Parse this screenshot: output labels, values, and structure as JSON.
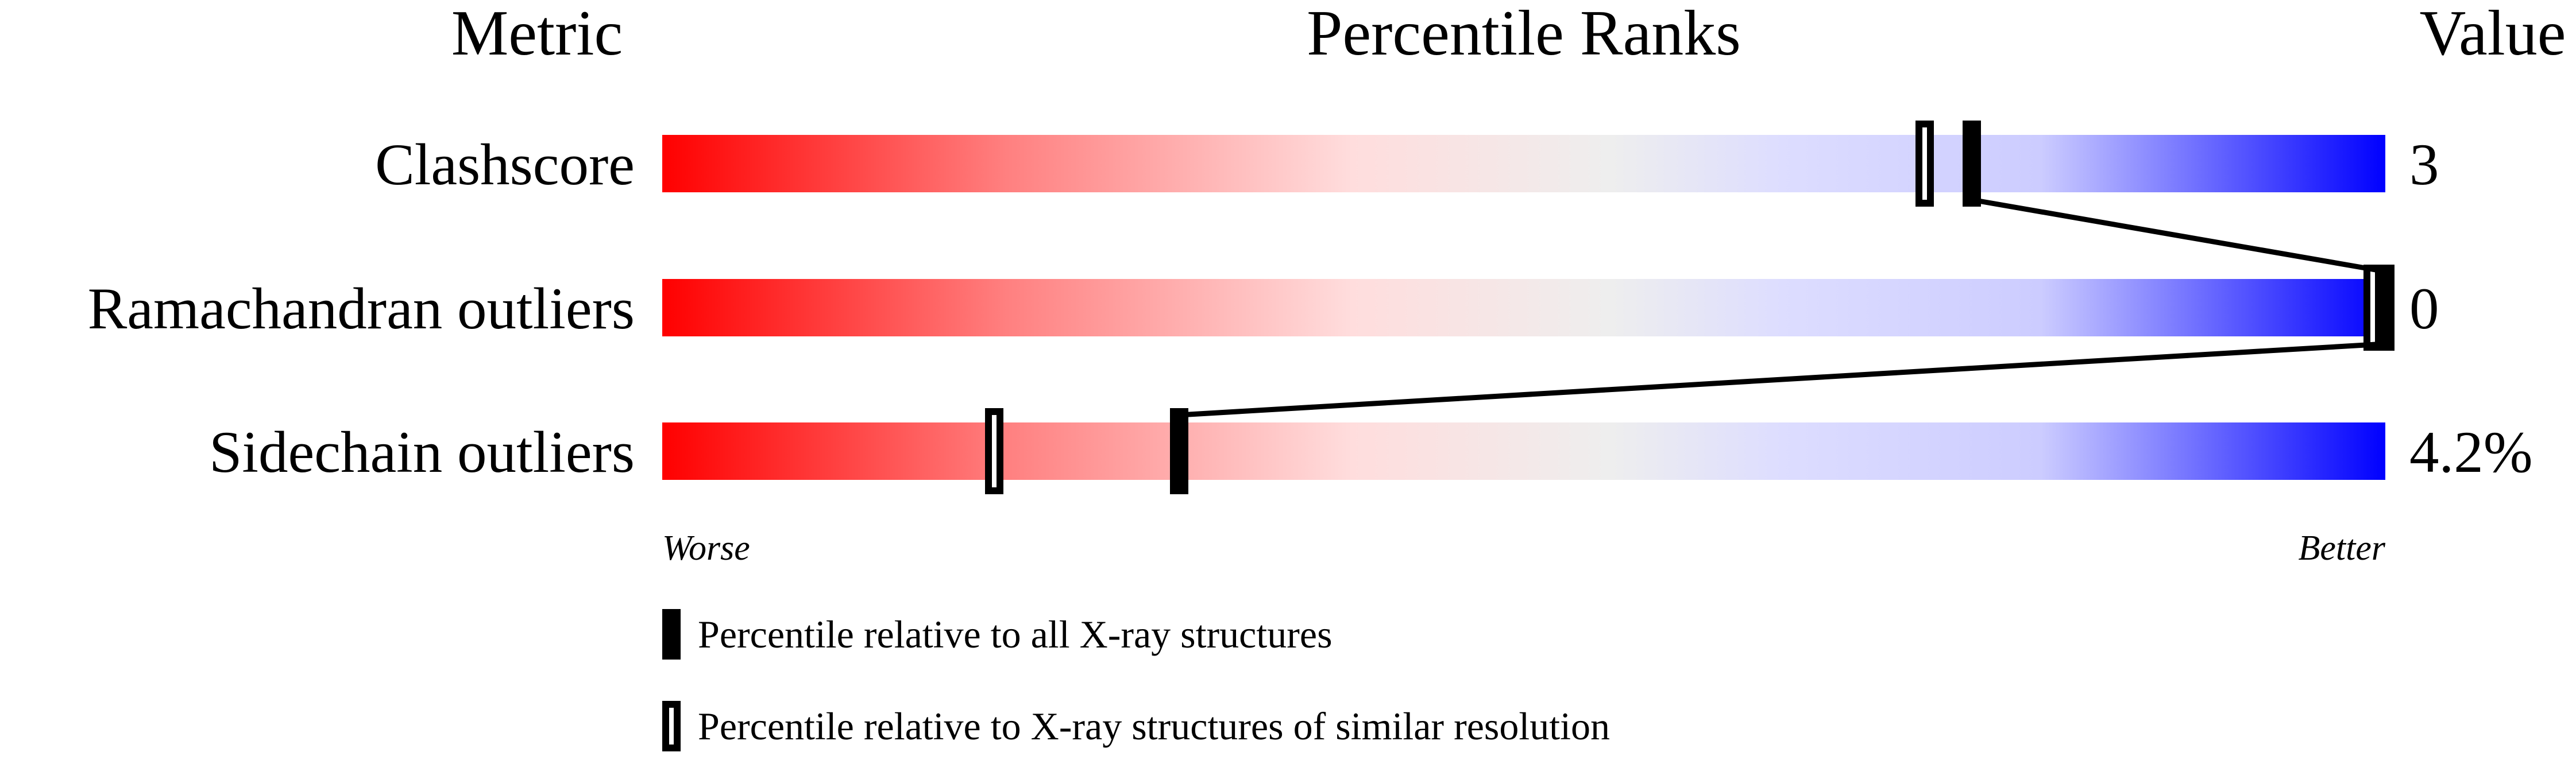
{
  "chart_data": {
    "type": "percentile-slider",
    "headers": {
      "metric": "Metric",
      "percentile": "Percentile Ranks",
      "value": "Value"
    },
    "xlim": [
      0,
      100
    ],
    "rows": [
      {
        "metric": "Clashscore",
        "value": "3",
        "percentile_all": 76,
        "percentile_similar": 74
      },
      {
        "metric": "Ramachandran outliers",
        "value": "0",
        "percentile_all": 100,
        "percentile_similar": 100
      },
      {
        "metric": "Sidechain outliers",
        "value": "4.2%",
        "percentile_all": 30,
        "percentile_similar": 20
      }
    ],
    "axis_labels": {
      "left": "Worse",
      "right": "Better"
    },
    "legend": [
      {
        "marker": "filled",
        "label": "Percentile relative to all X-ray structures"
      },
      {
        "marker": "open",
        "label": "Percentile relative to X-ray structures of similar resolution"
      }
    ],
    "colors": {
      "worse": "#ff0000",
      "middle": "#eeeeee",
      "better": "#0000ff",
      "marker": "#000000"
    }
  }
}
